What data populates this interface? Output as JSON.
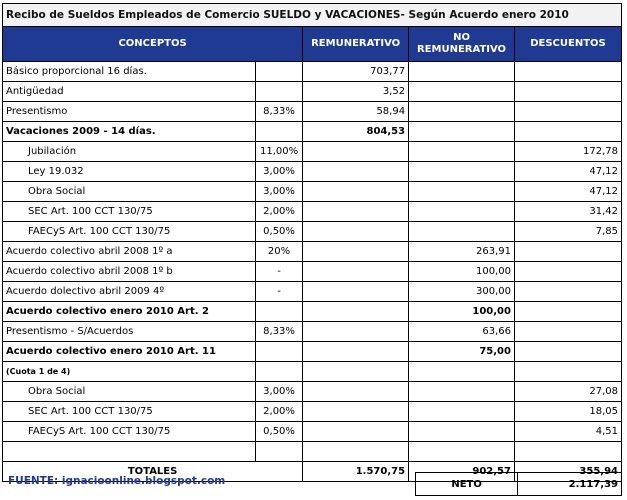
{
  "title": "Recibo de Sueldos Empleados de Comercio SUELDO y VACACIONES- Según Acuerdo enero 2010",
  "headers": {
    "conceptos": "CONCEPTOS",
    "remunerativo": "REMUNERATIVO",
    "no_remunerativo_1": "NO",
    "no_remunerativo_2": "REMUNERATIVO",
    "descuentos": "DESCUENTOS"
  },
  "rows": [
    {
      "concept": "Básico proporcional 16 días.",
      "pct": "",
      "rem": "703,77",
      "norem": "",
      "desc": ""
    },
    {
      "concept": "Antigüedad",
      "pct": "",
      "rem": "3,52",
      "norem": "",
      "desc": ""
    },
    {
      "concept": "Presentismo",
      "pct": "8,33%",
      "rem": "58,94",
      "norem": "",
      "desc": ""
    },
    {
      "concept": "Vacaciones 2009 - 14 días.",
      "pct": "",
      "rem": "804,53",
      "norem": "",
      "desc": ""
    },
    {
      "concept": "Jubilación",
      "pct": "11,00%",
      "rem": "",
      "norem": "",
      "desc": "172,78"
    },
    {
      "concept": "Ley 19.032",
      "pct": "3,00%",
      "rem": "",
      "norem": "",
      "desc": "47,12"
    },
    {
      "concept": "Obra Social",
      "pct": "3,00%",
      "rem": "",
      "norem": "",
      "desc": "47,12"
    },
    {
      "concept": "SEC Art. 100 CCT 130/75",
      "pct": "2,00%",
      "rem": "",
      "norem": "",
      "desc": "31,42"
    },
    {
      "concept": "FAECyS Art. 100 CCT 130/75",
      "pct": "0,50%",
      "rem": "",
      "norem": "",
      "desc": "7,85"
    },
    {
      "concept": "Acuerdo colectivo abril 2008  1º a",
      "pct": "20%",
      "rem": "",
      "norem": "263,91",
      "desc": ""
    },
    {
      "concept": "Acuerdo colectivo abril 2008 1º b",
      "pct": "-",
      "rem": "",
      "norem": "100,00",
      "desc": ""
    },
    {
      "concept": "Acuerdo dolectivo abril 2009 4º",
      "pct": "-",
      "rem": "",
      "norem": "300,00",
      "desc": ""
    },
    {
      "concept": "Acuerdo colectivo enero 2010 Art. 2",
      "pct": "",
      "rem": "",
      "norem": "100,00",
      "desc": ""
    },
    {
      "concept": "Presentismo - S/Acuerdos",
      "pct": "8,33%",
      "rem": "",
      "norem": "63,66",
      "desc": ""
    },
    {
      "concept": "Acuerdo colectivo enero 2010  Art. 11",
      "pct": "",
      "rem": "",
      "norem": "75,00",
      "desc": ""
    },
    {
      "concept": "(Cuota 1 de 4)",
      "pct": "",
      "rem": "",
      "norem": "",
      "desc": ""
    },
    {
      "concept": "Obra Social",
      "pct": "3,00%",
      "rem": "",
      "norem": "",
      "desc": "27,08"
    },
    {
      "concept": "SEC Art. 100 CCT 130/75",
      "pct": "2,00%",
      "rem": "",
      "norem": "",
      "desc": "18,05"
    },
    {
      "concept": "FAECyS Art. 100 CCT 130/75",
      "pct": "0,50%",
      "rem": "",
      "norem": "",
      "desc": "4,51"
    },
    {
      "concept": "",
      "pct": "",
      "rem": "",
      "norem": "",
      "desc": ""
    }
  ],
  "totals": {
    "label": "TOTALES",
    "rem": "1.570,75",
    "norem": "902,57",
    "desc": "355,94"
  },
  "footer": {
    "source": "FUENTE: ignacioonline.blogspot.com",
    "neto_label": "NETO",
    "neto_value": "2.117,39"
  },
  "colors": {
    "header_bg": "#1f3a93",
    "source_text": "#1f3a93"
  }
}
